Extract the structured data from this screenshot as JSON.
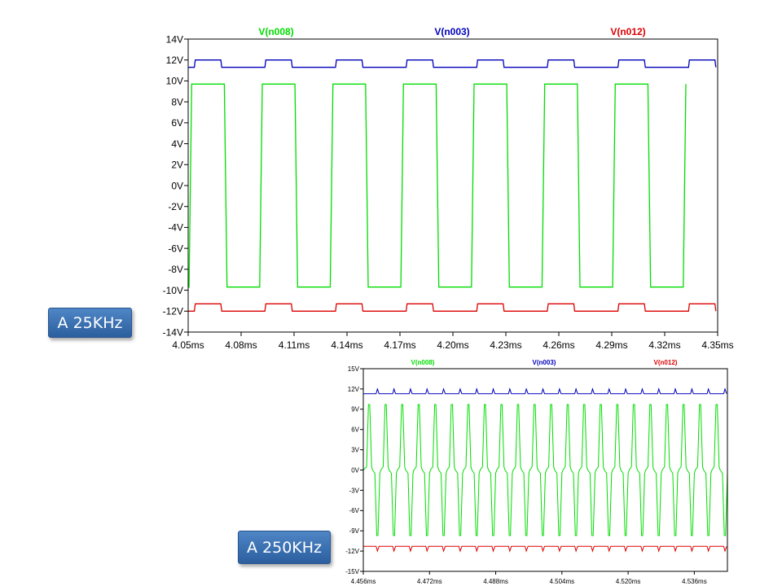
{
  "badges": {
    "top": "A 25KHz",
    "bottom": "A 250KHz"
  },
  "chart_data": [
    {
      "type": "line",
      "ylim": [
        -14,
        14
      ],
      "xlim": [
        4.05,
        4.35
      ],
      "y_ticks": [
        14,
        12,
        10,
        8,
        6,
        4,
        2,
        0,
        -2,
        -4,
        -6,
        -8,
        -10,
        -12,
        -14
      ],
      "y_tick_labels": [
        "14V",
        "12V",
        "10V",
        "8V",
        "6V",
        "4V",
        "2V",
        "0V",
        "-2V",
        "-4V",
        "-6V",
        "-8V",
        "-10V",
        "-12V",
        "-14V"
      ],
      "x_ticks": [
        4.05,
        4.08,
        4.11,
        4.14,
        4.17,
        4.2,
        4.23,
        4.26,
        4.29,
        4.32,
        4.35
      ],
      "x_tick_labels": [
        "4.05ms",
        "4.08ms",
        "4.11ms",
        "4.14ms",
        "4.17ms",
        "4.20ms",
        "4.23ms",
        "4.26ms",
        "4.29ms",
        "4.32ms",
        "4.35ms"
      ],
      "grid": false,
      "legend": "top",
      "series": [
        {
          "name": "V(n008)",
          "color": "#00dd00",
          "wave": "square",
          "period_ms": 0.04,
          "first_rise_ms": 4.0505,
          "high": 9.7,
          "low": -9.7,
          "transition_ms": 0.0015
        },
        {
          "name": "V(n003)",
          "color": "#0000bb",
          "wave": "pulse",
          "period_ms": 0.04,
          "first_rise_ms": 4.0535,
          "high": 12.0,
          "low": 11.3,
          "width_ms": 0.015
        },
        {
          "name": "V(n012)",
          "color": "#dd0000",
          "wave": "pulse",
          "period_ms": 0.04,
          "first_rise_ms": 4.0535,
          "high": -11.3,
          "low": -12.0,
          "width_ms": 0.015
        }
      ]
    },
    {
      "type": "line",
      "ylim": [
        -15,
        15
      ],
      "xlim": [
        4.456,
        4.544
      ],
      "y_ticks": [
        15,
        12,
        9,
        6,
        3,
        0,
        -3,
        -6,
        -9,
        -12,
        -15
      ],
      "y_tick_labels": [
        "15V",
        "12V",
        "9V",
        "6V",
        "3V",
        "0V",
        "-3V",
        "-6V",
        "-9V",
        "-12V",
        "-15V"
      ],
      "x_ticks": [
        4.456,
        4.472,
        4.488,
        4.504,
        4.52,
        4.536
      ],
      "x_tick_labels": [
        "4.456ms",
        "4.472ms",
        "4.488ms",
        "4.504ms",
        "4.520ms",
        "4.536ms"
      ],
      "grid": false,
      "legend": "top",
      "series": [
        {
          "name": "V(n008)",
          "color": "#00dd00",
          "wave": "fast-square",
          "period_ms": 0.004,
          "first_peak_ms": 4.4574,
          "high": 9.7,
          "low": -9.7
        },
        {
          "name": "V(n003)",
          "color": "#0000bb",
          "wave": "spikes",
          "period_ms": 0.004,
          "first_spike_ms": 4.4594,
          "base": 11.3,
          "peak": 12.0
        },
        {
          "name": "V(n012)",
          "color": "#dd0000",
          "wave": "spikes",
          "period_ms": 0.004,
          "first_spike_ms": 4.4594,
          "base": -11.3,
          "peak": -12.0
        }
      ]
    }
  ]
}
